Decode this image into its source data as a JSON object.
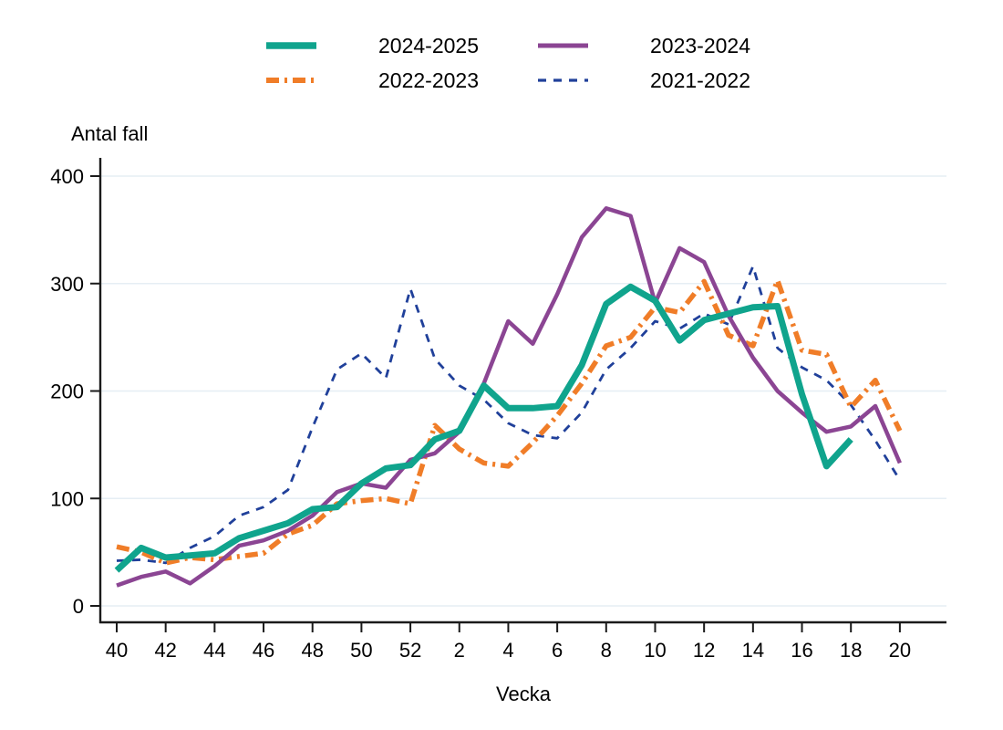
{
  "page": {
    "background": "#ffffff"
  },
  "chart_data": {
    "type": "line",
    "title": "",
    "ylabel": "Antal fall",
    "xlabel": "Vecka",
    "ylim": [
      0,
      400
    ],
    "yticks": [
      0,
      100,
      200,
      300,
      400
    ],
    "grid": "horizontal",
    "legend_position": "top",
    "categories": [
      "40",
      "41",
      "42",
      "43",
      "44",
      "45",
      "46",
      "47",
      "48",
      "49",
      "50",
      "51",
      "52",
      "1",
      "2",
      "3",
      "4",
      "5",
      "6",
      "7",
      "8",
      "9",
      "10",
      "11",
      "12",
      "13",
      "14",
      "15",
      "16",
      "17",
      "18",
      "19",
      "20"
    ],
    "x_tick_labels": [
      "40",
      "42",
      "44",
      "46",
      "48",
      "50",
      "52",
      "2",
      "4",
      "6",
      "8",
      "10",
      "12",
      "14",
      "16",
      "18",
      "20"
    ],
    "series": [
      {
        "name": "2024-2025",
        "color": "#10a48d",
        "style": "solid",
        "width": 7,
        "values": [
          33,
          54,
          45,
          47,
          49,
          63,
          70,
          77,
          90,
          92,
          114,
          128,
          131,
          155,
          163,
          205,
          184,
          184,
          186,
          224,
          281,
          297,
          284,
          247,
          266,
          272,
          278,
          279,
          197,
          130,
          155,
          null,
          null
        ]
      },
      {
        "name": "2023-2024",
        "color": "#8b4593",
        "style": "solid",
        "width": 4.5,
        "values": [
          19,
          27,
          32,
          21,
          37,
          56,
          61,
          70,
          84,
          106,
          114,
          110,
          136,
          142,
          162,
          207,
          265,
          244,
          290,
          343,
          370,
          363,
          282,
          333,
          320,
          270,
          231,
          200,
          180,
          162,
          167,
          186,
          133
        ]
      },
      {
        "name": "2022-2023",
        "color": "#f07d28",
        "style": "dashdot",
        "width": 5.5,
        "values": [
          55,
          50,
          40,
          45,
          43,
          46,
          49,
          67,
          75,
          95,
          98,
          100,
          95,
          168,
          146,
          133,
          130,
          152,
          177,
          207,
          242,
          250,
          278,
          273,
          302,
          252,
          242,
          303,
          238,
          234,
          185,
          210,
          163
        ]
      },
      {
        "name": "2021-2022",
        "color": "#20409a",
        "style": "dashed",
        "width": 2.8,
        "values": [
          42,
          43,
          40,
          54,
          65,
          84,
          92,
          108,
          166,
          220,
          235,
          212,
          295,
          230,
          205,
          192,
          170,
          159,
          156,
          180,
          220,
          240,
          265,
          258,
          272,
          262,
          316,
          240,
          222,
          210,
          187,
          154,
          117
        ]
      }
    ],
    "axis_color": "#1a1a1a",
    "gridline_color": "#e6eef4"
  }
}
